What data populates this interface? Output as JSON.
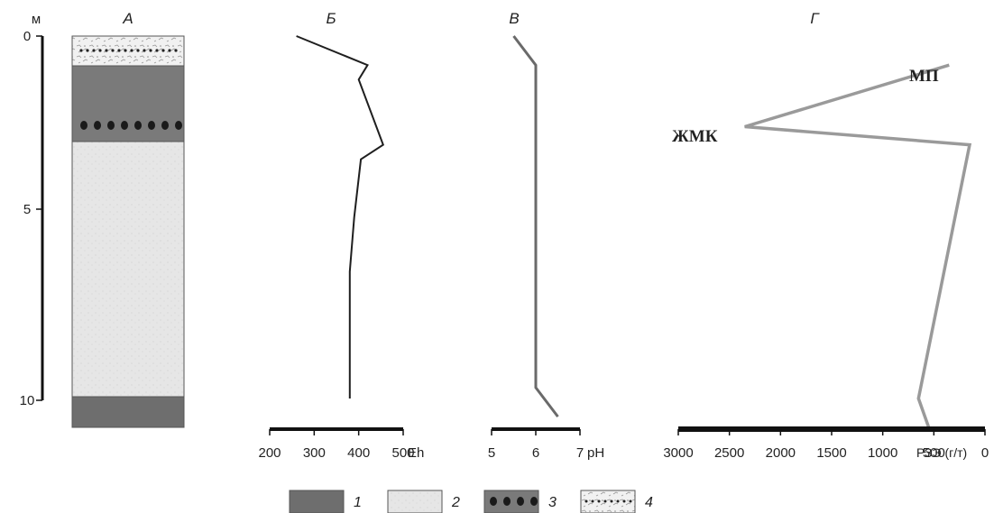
{
  "depth_axis": {
    "unit": "м",
    "ticks": [
      "0",
      "5",
      "10"
    ]
  },
  "panels": {
    "A": "А",
    "B": "Б",
    "V": "В",
    "G": "Г"
  },
  "legend": {
    "items": [
      "1",
      "2",
      "3",
      "4"
    ]
  },
  "colors": {
    "dark_layer": "#6e6e6e",
    "light_layer": "#e6e6e6",
    "eh_line": "#1f1f1f",
    "ph_line": "#6a6a6a",
    "ree_line": "#9a9a9a"
  },
  "chart_data": [
    {
      "type": "line",
      "panel": "Б",
      "series": [
        {
          "x": [
            260,
            420,
            400,
            455,
            405,
            390,
            380,
            380
          ],
          "y": [
            0,
            0.8,
            1.2,
            3.0,
            3.4,
            5.0,
            6.5,
            10.0
          ]
        }
      ],
      "xticks": [
        "200",
        "300",
        "400",
        "500"
      ],
      "xlabel": "Eh",
      "xlim": [
        200,
        500
      ],
      "ylim": [
        0,
        10
      ],
      "y_inverted": true
    },
    {
      "type": "line",
      "panel": "В",
      "series": [
        {
          "x": [
            5.5,
            6.0,
            6.0,
            6.5
          ],
          "y": [
            0,
            0.8,
            9.7,
            10.5
          ]
        }
      ],
      "xticks": [
        "5",
        "6",
        "7"
      ],
      "xlabel": "pH",
      "xlim": [
        5,
        7
      ],
      "ylim": [
        0,
        10
      ],
      "y_inverted": true
    },
    {
      "type": "line",
      "panel": "Г",
      "series": [
        {
          "x": [
            350,
            2350,
            150,
            650,
            550
          ],
          "y": [
            0.8,
            2.5,
            3.0,
            10.0,
            10.8
          ]
        }
      ],
      "xticks": [
        "3000",
        "2500",
        "2000",
        "1500",
        "1000",
        "500",
        "0"
      ],
      "xlabel": "РЗЭ (г/т)",
      "xlim": [
        3000,
        0
      ],
      "ylim": [
        0,
        10
      ],
      "y_inverted": true,
      "annotations": [
        "МП",
        "ЖМК"
      ]
    }
  ]
}
